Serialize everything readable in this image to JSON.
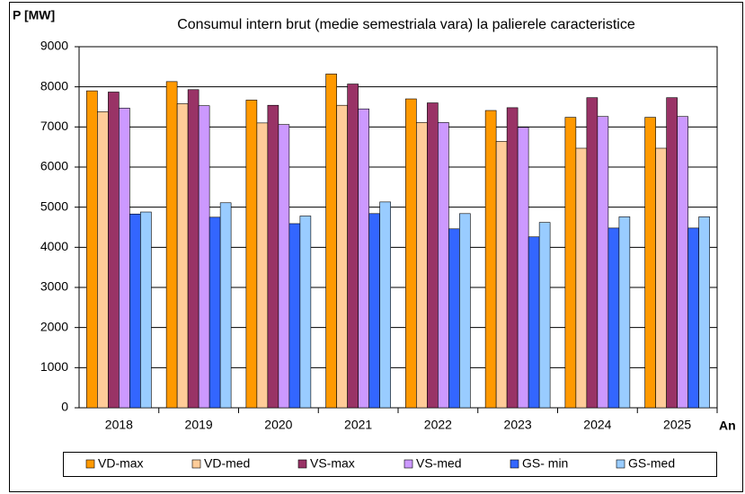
{
  "chart_data": {
    "type": "bar",
    "title": "Consumul intern brut (medie semestriala vara) la palierele caracteristice",
    "y_label": "P [MW]",
    "x_label": "An",
    "categories": [
      "2018",
      "2019",
      "2020",
      "2021",
      "2022",
      "2023",
      "2024",
      "2025"
    ],
    "series": [
      {
        "name": "VD-max",
        "color": "#ff9900",
        "values": [
          7900,
          8130,
          7670,
          8320,
          7700,
          7410,
          7240,
          7240
        ]
      },
      {
        "name": "VD-med",
        "color": "#ffcc99",
        "values": [
          7380,
          7580,
          7100,
          7540,
          7110,
          6640,
          6470,
          6470
        ]
      },
      {
        "name": "VS-max",
        "color": "#993366",
        "values": [
          7870,
          7930,
          7540,
          8070,
          7600,
          7480,
          7730,
          7730
        ]
      },
      {
        "name": "VS-med",
        "color": "#cc99ff",
        "values": [
          7470,
          7530,
          7060,
          7450,
          7110,
          6990,
          7260,
          7260
        ]
      },
      {
        "name": "GS- min",
        "color": "#3366ff",
        "values": [
          4830,
          4750,
          4590,
          4840,
          4460,
          4260,
          4480,
          4480
        ]
      },
      {
        "name": "GS-med",
        "color": "#99ccff",
        "values": [
          4880,
          5110,
          4780,
          5130,
          4840,
          4620,
          4760,
          4760
        ]
      }
    ],
    "ylim": [
      0,
      9000
    ],
    "yticks": [
      0,
      1000,
      2000,
      3000,
      4000,
      5000,
      6000,
      7000,
      8000,
      9000
    ],
    "grid": true,
    "legend": "bottom"
  }
}
